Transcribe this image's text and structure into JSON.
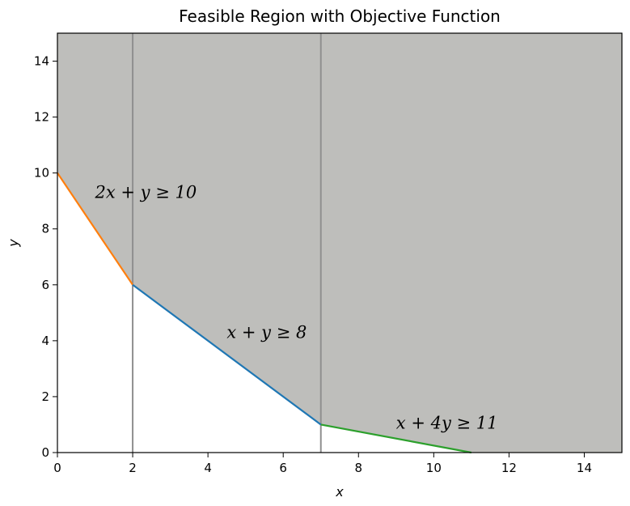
{
  "chart_data": {
    "type": "line",
    "title": "Feasible Region with Objective Function",
    "xlabel": "x",
    "ylabel": "y",
    "xlim": [
      0,
      15
    ],
    "ylim": [
      0,
      15
    ],
    "x_ticks": [
      0,
      2,
      4,
      6,
      8,
      10,
      12,
      14
    ],
    "y_ticks": [
      0,
      2,
      4,
      6,
      8,
      10,
      12,
      14
    ],
    "grid": false,
    "colors": {
      "region": "#bebebb",
      "vertical_lines": "#8f8f8f",
      "constraint_2x_y": "#ff7f0e",
      "constraint_x_y": "#1f77b4",
      "constraint_x_4y": "#2ca02c"
    },
    "feasible_region": {
      "boundary": [
        [
          0,
          15
        ],
        [
          0,
          10
        ],
        [
          2,
          6
        ],
        [
          7,
          1
        ],
        [
          11,
          0
        ],
        [
          15,
          0
        ],
        [
          15,
          15
        ]
      ]
    },
    "vertical_lines": [
      2,
      7
    ],
    "series": [
      {
        "x": [
          0,
          2
        ],
        "y": [
          10,
          6
        ],
        "color_key": "constraint_2x_y"
      },
      {
        "x": [
          2,
          7
        ],
        "y": [
          6,
          1
        ],
        "color_key": "constraint_x_y"
      },
      {
        "x": [
          7,
          11
        ],
        "y": [
          1,
          0
        ],
        "color_key": "constraint_x_4y"
      }
    ],
    "annotations": [
      {
        "text": "2x + y ≥ 10",
        "x": 1.0,
        "y": 9.1
      },
      {
        "text": "x + y ≥ 8",
        "x": 4.5,
        "y": 4.1
      },
      {
        "text": "x + 4y ≥ 11",
        "x": 9.0,
        "y": 0.85
      }
    ]
  }
}
